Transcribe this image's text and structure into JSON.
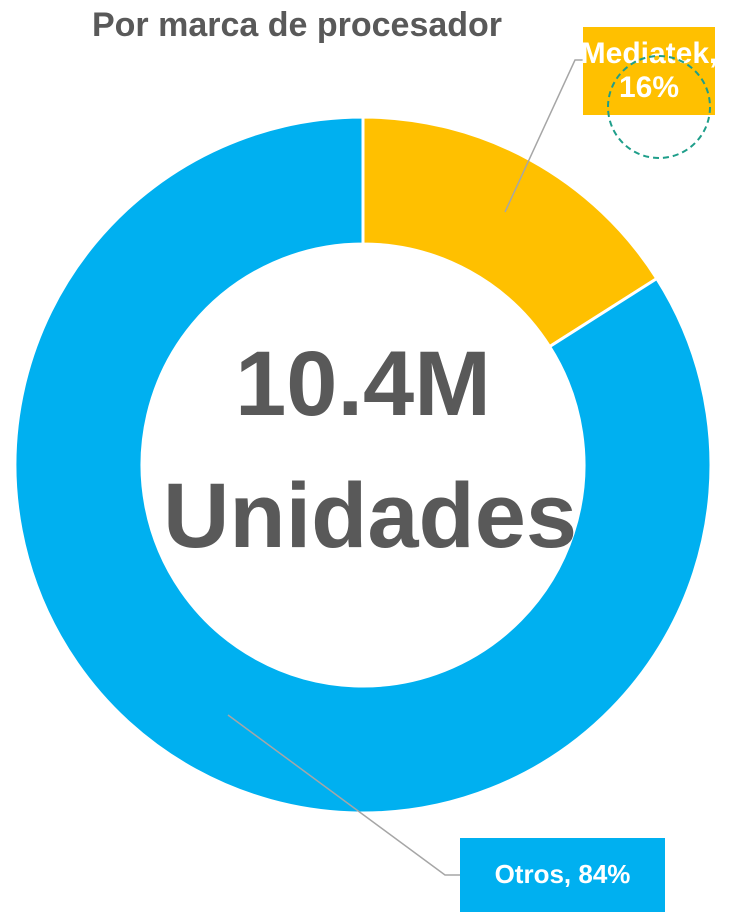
{
  "chart_data": {
    "type": "donut",
    "title": "Por marca de procesador",
    "center_text": [
      "10.4M",
      "Unidades"
    ],
    "categories": [
      "Mediatek",
      "Otros"
    ],
    "values": [
      16,
      84
    ],
    "value_labels": [
      "Mediatek, 16%",
      "Otros, 84%"
    ],
    "colors": [
      "#FFC000",
      "#00B0F0"
    ]
  }
}
